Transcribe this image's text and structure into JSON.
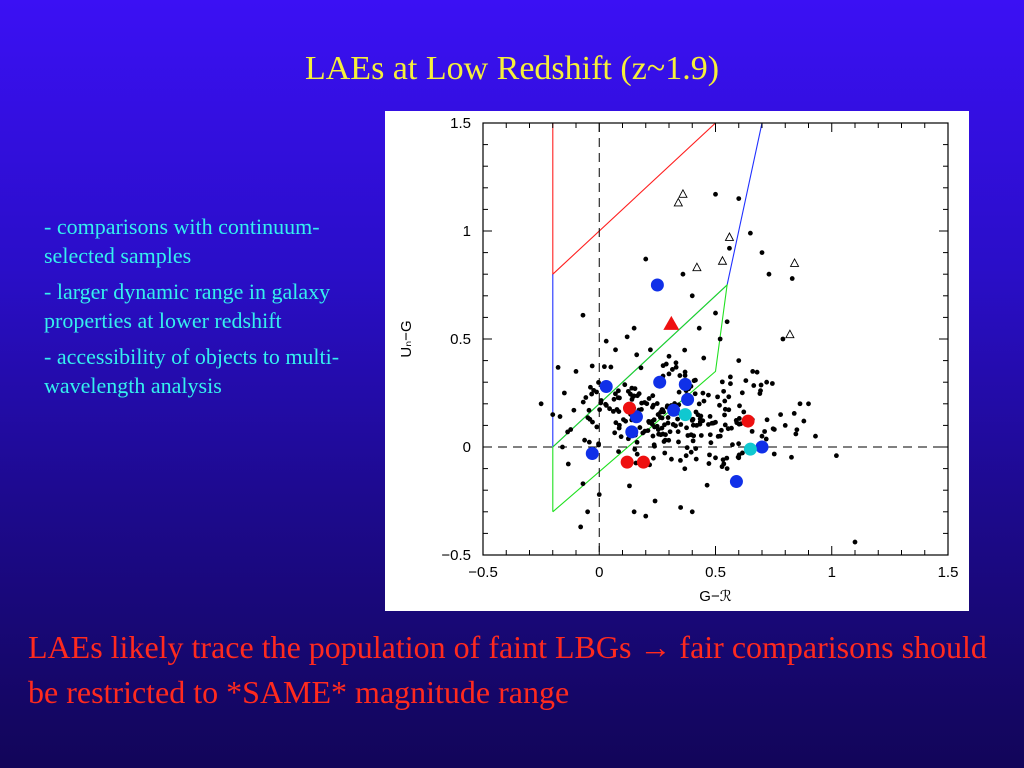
{
  "slide": {
    "title": "LAEs at Low Redshift (z~1.9)",
    "bullets": [
      "- comparisons with continuum-selected samples",
      "- larger dynamic range in galaxy properties at lower redshift",
      "- accessibility of objects to multi-wavelength analysis"
    ],
    "conclusion": "LAEs likely trace the population of faint LBGs → fair comparisons should be restricted to *SAME* magnitude range"
  },
  "colors": {
    "title": "#f6f03a",
    "bullets": "#35f0ee",
    "conclusion": "#ff2a1e",
    "background_top": "#3b10f4",
    "background_bottom": "#120559"
  },
  "chart_data": {
    "type": "scatter",
    "xlabel": "G−ℛ",
    "ylabel": "Uₙ−G",
    "xlim": [
      -0.5,
      1.5
    ],
    "ylim": [
      -0.5,
      1.5
    ],
    "x_ticks": [
      -0.5,
      0,
      0.5,
      1,
      1.5
    ],
    "y_ticks": [
      -0.5,
      0,
      0.5,
      1,
      1.5
    ],
    "x_tick_labels": [
      "−0.5",
      "0",
      "0.5",
      "1",
      "1.5"
    ],
    "y_tick_labels": [
      "−0.5",
      "0",
      "0.5",
      "1",
      "1.5"
    ],
    "grid": false,
    "reference_lines": {
      "x": 0,
      "y": 0,
      "style": "dashed"
    },
    "selection_boxes": [
      {
        "color": "#ff2020",
        "points": [
          [
            -0.2,
            1.5
          ],
          [
            -0.2,
            0.8
          ],
          [
            0.5,
            1.5
          ]
        ]
      },
      {
        "color": "#2030ff",
        "points": [
          [
            -0.2,
            0.8
          ],
          [
            -0.2,
            0.0
          ],
          [
            0.55,
            0.75
          ],
          [
            0.7,
            1.5
          ]
        ]
      },
      {
        "color": "#20e020",
        "points": [
          [
            -0.2,
            -0.3
          ],
          [
            -0.2,
            0.0
          ],
          [
            0.55,
            0.75
          ],
          [
            0.5,
            0.35
          ],
          [
            -0.2,
            -0.3
          ]
        ]
      }
    ],
    "series": [
      {
        "marker": "dot",
        "color": "#000000",
        "points": [
          [
            0.5,
            1.17
          ],
          [
            0.6,
            1.15
          ],
          [
            0.65,
            0.99
          ],
          [
            0.7,
            0.9
          ],
          [
            0.73,
            0.8
          ],
          [
            0.83,
            0.78
          ],
          [
            0.56,
            0.92
          ],
          [
            0.2,
            0.87
          ],
          [
            0.36,
            0.8
          ],
          [
            0.4,
            0.7
          ],
          [
            0.5,
            0.62
          ],
          [
            0.55,
            0.58
          ],
          [
            0.52,
            0.5
          ],
          [
            0.43,
            0.55
          ],
          [
            -0.07,
            0.61
          ],
          [
            0.03,
            0.49
          ],
          [
            0.07,
            0.45
          ],
          [
            0.15,
            0.55
          ],
          [
            0.12,
            0.51
          ],
          [
            0.22,
            0.45
          ],
          [
            0.3,
            0.42
          ],
          [
            0.33,
            0.39
          ],
          [
            0.05,
            0.37
          ],
          [
            0.6,
            0.4
          ],
          [
            0.66,
            0.35
          ],
          [
            0.72,
            0.3
          ],
          [
            0.79,
            0.5
          ],
          [
            0.93,
            0.05
          ],
          [
            1.02,
            -0.04
          ],
          [
            1.1,
            -0.44
          ],
          [
            -0.1,
            0.35
          ],
          [
            -0.25,
            0.2
          ],
          [
            -0.2,
            0.15
          ],
          [
            -0.15,
            0.25
          ],
          [
            -0.07,
            -0.17
          ],
          [
            -0.05,
            -0.3
          ],
          [
            -0.08,
            -0.37
          ],
          [
            0.0,
            -0.22
          ],
          [
            0.13,
            -0.18
          ],
          [
            0.15,
            -0.3
          ],
          [
            0.2,
            -0.32
          ],
          [
            0.24,
            -0.25
          ],
          [
            0.35,
            -0.28
          ],
          [
            0.4,
            -0.3
          ],
          [
            0.5,
            -0.05
          ],
          [
            0.55,
            -0.1
          ],
          [
            0.6,
            -0.05
          ],
          [
            0.7,
            0.05
          ],
          [
            0.78,
            0.15
          ],
          [
            0.8,
            0.1
          ],
          [
            0.85,
            0.08
          ],
          [
            0.88,
            0.12
          ],
          [
            0.9,
            0.2
          ]
        ],
        "cluster": {
          "center": [
            0.3,
            0.15
          ],
          "spread": [
            0.65,
            0.35
          ],
          "count": 250
        }
      },
      {
        "marker": "circle",
        "color": "#1030e8",
        "points": [
          [
            0.25,
            0.75
          ],
          [
            0.03,
            0.28
          ],
          [
            0.26,
            0.3
          ],
          [
            0.37,
            0.29
          ],
          [
            0.38,
            0.22
          ],
          [
            0.16,
            0.14
          ],
          [
            0.32,
            0.17
          ],
          [
            0.14,
            0.07
          ],
          [
            -0.03,
            -0.03
          ],
          [
            0.7,
            0.0
          ],
          [
            0.59,
            -0.16
          ]
        ]
      },
      {
        "marker": "circle",
        "color": "#ee1010",
        "points": [
          [
            0.13,
            0.18
          ],
          [
            0.64,
            0.12
          ],
          [
            0.12,
            -0.07
          ],
          [
            0.19,
            -0.07
          ]
        ]
      },
      {
        "marker": "circle",
        "color": "#10c8d0",
        "points": [
          [
            0.37,
            0.15
          ],
          [
            0.65,
            -0.01
          ]
        ]
      },
      {
        "marker": "triangle-filled",
        "color": "#ee1010",
        "points": [
          [
            0.31,
            0.57
          ]
        ]
      },
      {
        "marker": "triangle-open",
        "color": "#000000",
        "points": [
          [
            0.36,
            1.17
          ],
          [
            0.34,
            1.13
          ],
          [
            0.56,
            0.97
          ],
          [
            0.53,
            0.86
          ],
          [
            0.42,
            0.83
          ],
          [
            0.84,
            0.85
          ],
          [
            0.82,
            0.52
          ]
        ]
      }
    ]
  }
}
